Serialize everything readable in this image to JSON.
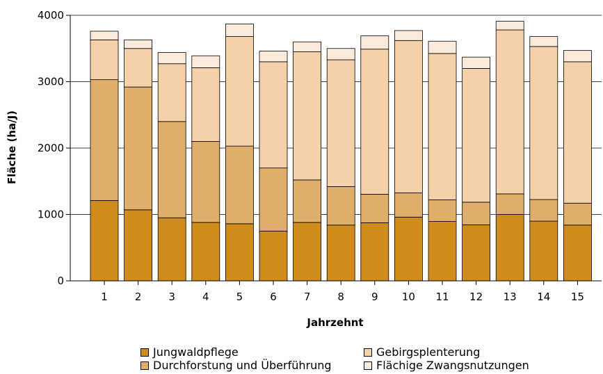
{
  "chart_data": {
    "type": "bar",
    "stacked": true,
    "xlabel": "Jahrzehnt",
    "ylabel": "Fläche (ha/J)",
    "ylim": [
      0,
      4000
    ],
    "yticks": [
      0,
      1000,
      2000,
      3000,
      4000
    ],
    "categories": [
      "1",
      "2",
      "3",
      "4",
      "5",
      "6",
      "7",
      "8",
      "9",
      "10",
      "11",
      "12",
      "13",
      "14",
      "15"
    ],
    "grid": "horizontal",
    "legend_position": "bottom",
    "series": [
      {
        "name": "Jungwaldpflege",
        "color": "#cf8b1b",
        "values": [
          1210,
          1070,
          950,
          880,
          860,
          750,
          880,
          840,
          875,
          960,
          895,
          845,
          1000,
          900,
          840
        ]
      },
      {
        "name": "Durchforstung und Überführung",
        "color": "#dfae6b",
        "values": [
          1820,
          1850,
          1450,
          1220,
          1170,
          950,
          640,
          580,
          430,
          365,
          325,
          340,
          310,
          325,
          330
        ]
      },
      {
        "name": "Gebirgsplenterung",
        "color": "#f4d1a8",
        "values": [
          600,
          580,
          870,
          1110,
          1650,
          1600,
          1930,
          1910,
          2185,
          2295,
          2205,
          2015,
          2470,
          2305,
          2130
        ]
      },
      {
        "name": "Flächige Zwangsnutzungen",
        "color": "#faeadb",
        "values": [
          130,
          130,
          170,
          180,
          190,
          160,
          150,
          170,
          200,
          150,
          185,
          170,
          130,
          150,
          170
        ]
      }
    ]
  },
  "legend": {
    "items": [
      {
        "label": "Jungwaldpflege"
      },
      {
        "label": "Gebirgsplenterung"
      },
      {
        "label": "Durchforstung und Überführung"
      },
      {
        "label": "Flächige Zwangsnutzungen"
      }
    ]
  }
}
